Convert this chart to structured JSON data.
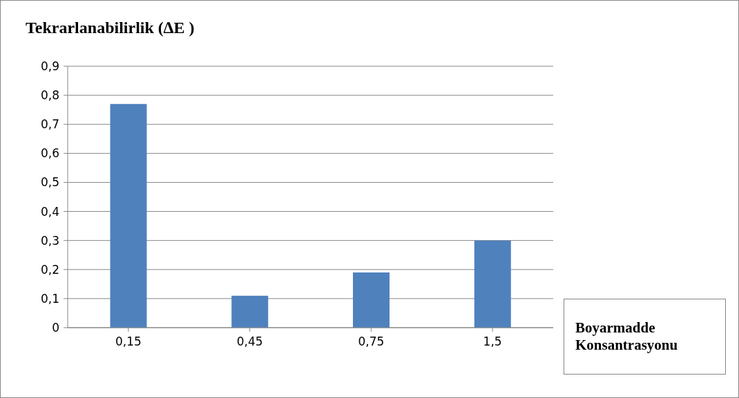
{
  "chart_data": {
    "type": "bar",
    "title": "Tekrarlanabilirlik (∆E )",
    "xlabel": "Boyarmadde Konsantrasyonu",
    "categories": [
      "0,15",
      "0,45",
      "0,75",
      "1,5"
    ],
    "values": [
      0.77,
      0.11,
      0.19,
      0.3
    ],
    "color": "#4f81bd",
    "ylim": [
      0,
      0.9
    ],
    "yticks": [
      0,
      {
        "value": 0.1,
        "label": "0,1"
      },
      {
        "value": 0.2,
        "label": "0,2"
      },
      {
        "value": 0.3,
        "label": "0,3"
      },
      {
        "value": 0.4,
        "label": "0,4"
      },
      {
        "value": 0.5,
        "label": "0,5"
      },
      {
        "value": 0.6,
        "label": "0,6"
      },
      {
        "value": 0.7,
        "label": "0,7"
      },
      {
        "value": 0.8,
        "label": "0,8"
      },
      {
        "value": 0.9,
        "label": "0,9"
      }
    ],
    "grid": "y",
    "legend": false
  }
}
